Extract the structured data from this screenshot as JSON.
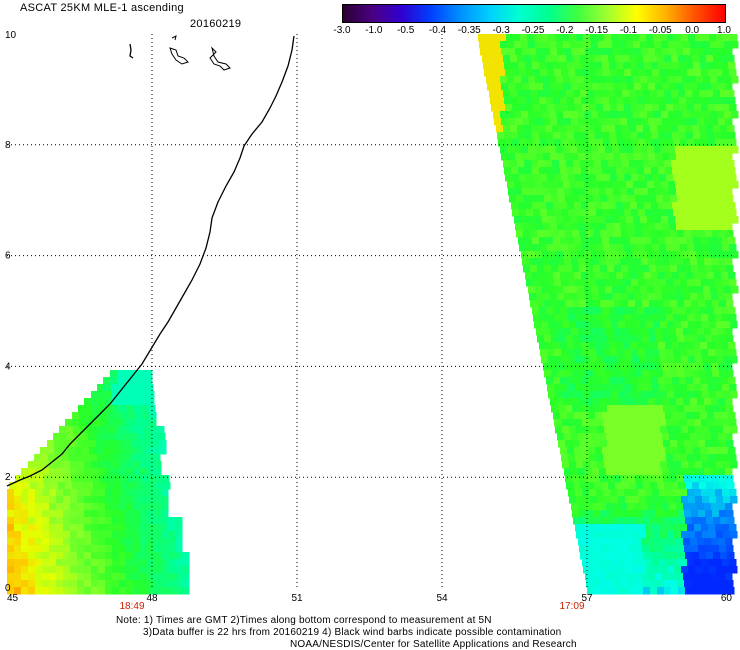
{
  "header": {
    "title": "ASCAT 25KM MLE-1 ascending",
    "date": "20160219"
  },
  "colorbar": {
    "labels": [
      "-3.0",
      "-1.0",
      "-0.5",
      "-0.4",
      "-0.35",
      "-0.3",
      "-0.25",
      "-0.2",
      "-0.15",
      "-0.1",
      "-0.05",
      "0.0",
      "1.0"
    ],
    "colors": [
      "#2a0030",
      "#4b0082",
      "#3000d0",
      "#0040ff",
      "#0090ff",
      "#00d0ff",
      "#00ffd0",
      "#00ff90",
      "#40ff40",
      "#a0ff30",
      "#ffff00",
      "#ffb000",
      "#ff5000",
      "#ff0000"
    ]
  },
  "axes": {
    "x_ticks": [
      "45",
      "48",
      "51",
      "54",
      "57",
      "60"
    ],
    "y_ticks": [
      "0",
      "2",
      "4",
      "6",
      "8",
      "10"
    ]
  },
  "times": {
    "left": "18:49",
    "right": "17:09"
  },
  "notes": {
    "line1": "Note: 1) Times are GMT 2)Times along bottom correspond to measurement at 5N",
    "line2": "3)Data buffer is 22 hrs from 20160219 4) Black wind barbs indicate possible contamination",
    "line3": "NOAA/NESDIS/Center for Satellite Applications and Research"
  }
}
